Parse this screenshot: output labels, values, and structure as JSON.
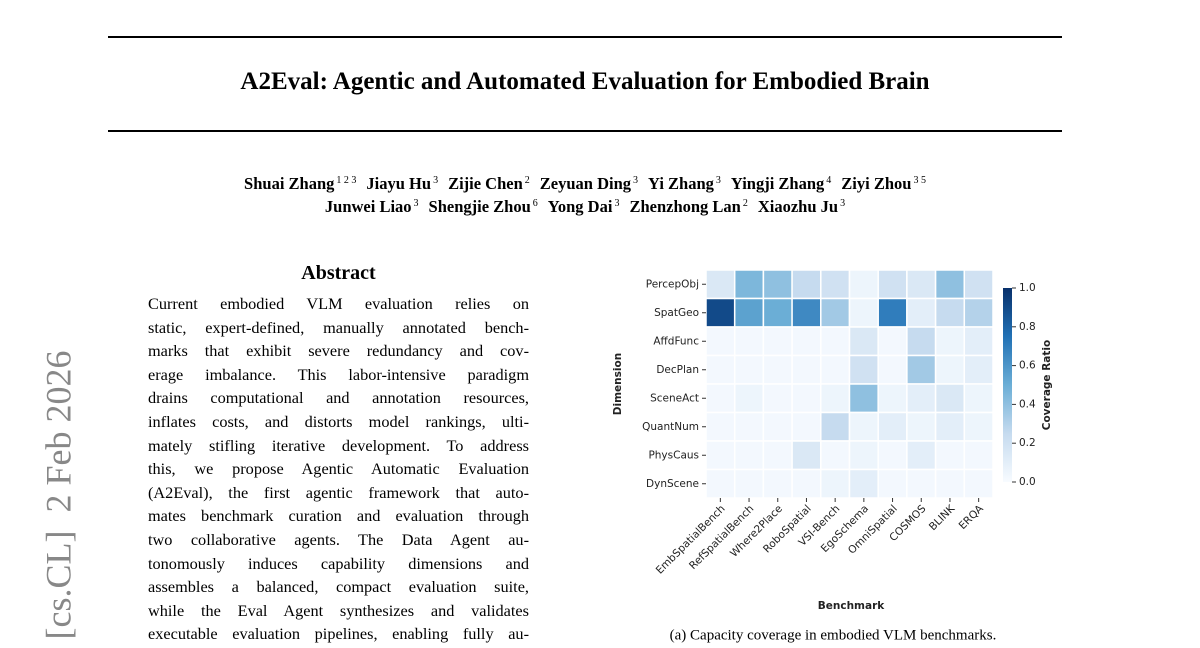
{
  "stamp": "[cs.CL]  2 Feb 2026",
  "title": "A2Eval: Agentic and Automated Evaluation for Embodied Brain",
  "authors": [
    [
      {
        "name": "Shuai Zhang",
        "affil": "1 2 3"
      },
      {
        "name": "Jiayu Hu",
        "affil": "3"
      },
      {
        "name": "Zijie Chen",
        "affil": "2"
      },
      {
        "name": "Zeyuan Ding",
        "affil": "3"
      },
      {
        "name": "Yi Zhang",
        "affil": "3"
      },
      {
        "name": "Yingji Zhang",
        "affil": "4"
      },
      {
        "name": "Ziyi Zhou",
        "affil": "3 5"
      }
    ],
    [
      {
        "name": "Junwei Liao",
        "affil": "3"
      },
      {
        "name": "Shengjie Zhou",
        "affil": "6"
      },
      {
        "name": "Yong Dai",
        "affil": "3"
      },
      {
        "name": "Zhenzhong Lan",
        "affil": "2"
      },
      {
        "name": "Xiaozhu Ju",
        "affil": "3"
      }
    ]
  ],
  "abstract": {
    "heading": "Abstract",
    "lines": [
      "Current embodied VLM evaluation relies on",
      "static, expert-defined, manually annotated bench-",
      "marks that exhibit severe redundancy and cov-",
      "erage imbalance. This labor-intensive paradigm",
      "drains computational and annotation resources,",
      "inflates costs, and distorts model rankings, ulti-",
      "mately stifling iterative development. To address",
      "this, we propose Agentic Automatic Evaluation",
      "(A2Eval), the first agentic framework that auto-",
      "mates benchmark curation and evaluation through",
      "two collaborative agents.  The Data Agent au-",
      "tonomously induces capability dimensions and",
      "assembles a balanced, compact evaluation suite,",
      "while the Eval Agent synthesizes and validates",
      "executable evaluation pipelines, enabling fully au-"
    ]
  },
  "chart_data": {
    "type": "heatmap",
    "caption": "(a) Capacity coverage in embodied VLM benchmarks.",
    "xlabel": "Benchmark",
    "ylabel": "Dimension",
    "colorbar_label": "Coverage Ratio",
    "x": [
      "EmbSpatialBench",
      "RefSpatialBench",
      "Where2Place",
      "RoboSpatial",
      "VSI-Bench",
      "EgoSchema",
      "OmniSpatial",
      "COSMOS",
      "BLINK",
      "ERQA"
    ],
    "y": [
      "PercepObj",
      "SpatGeo",
      "AffdFunc",
      "DecPlan",
      "SceneAct",
      "QuantNum",
      "PhysCaus",
      "DynScene"
    ],
    "values": [
      [
        0.15,
        0.45,
        0.4,
        0.25,
        0.2,
        0.05,
        0.2,
        0.15,
        0.4,
        0.2
      ],
      [
        0.9,
        0.55,
        0.5,
        0.65,
        0.35,
        0.05,
        0.7,
        0.1,
        0.25,
        0.3
      ],
      [
        0.02,
        0.02,
        0.02,
        0.02,
        0.02,
        0.15,
        0.02,
        0.25,
        0.05,
        0.1
      ],
      [
        0.02,
        0.02,
        0.02,
        0.02,
        0.02,
        0.2,
        0.02,
        0.35,
        0.05,
        0.1
      ],
      [
        0.02,
        0.05,
        0.02,
        0.02,
        0.05,
        0.4,
        0.05,
        0.1,
        0.15,
        0.05
      ],
      [
        0.02,
        0.02,
        0.02,
        0.02,
        0.25,
        0.05,
        0.1,
        0.05,
        0.1,
        0.05
      ],
      [
        0.02,
        0.02,
        0.02,
        0.15,
        0.02,
        0.05,
        0.02,
        0.1,
        0.02,
        0.02
      ],
      [
        0.02,
        0.02,
        0.02,
        0.02,
        0.05,
        0.1,
        0.02,
        0.02,
        0.02,
        0.02
      ]
    ],
    "clim": [
      0,
      1
    ],
    "cticks": [
      {
        "value": 0,
        "label": "0.0"
      },
      0.2,
      0.4,
      0.6,
      0.8,
      {
        "value": 1,
        "label": "1.0"
      }
    ],
    "colormap": [
      "#f7fbff",
      "#c6dbef",
      "#6baed6",
      "#2171b5",
      "#08306b"
    ]
  }
}
